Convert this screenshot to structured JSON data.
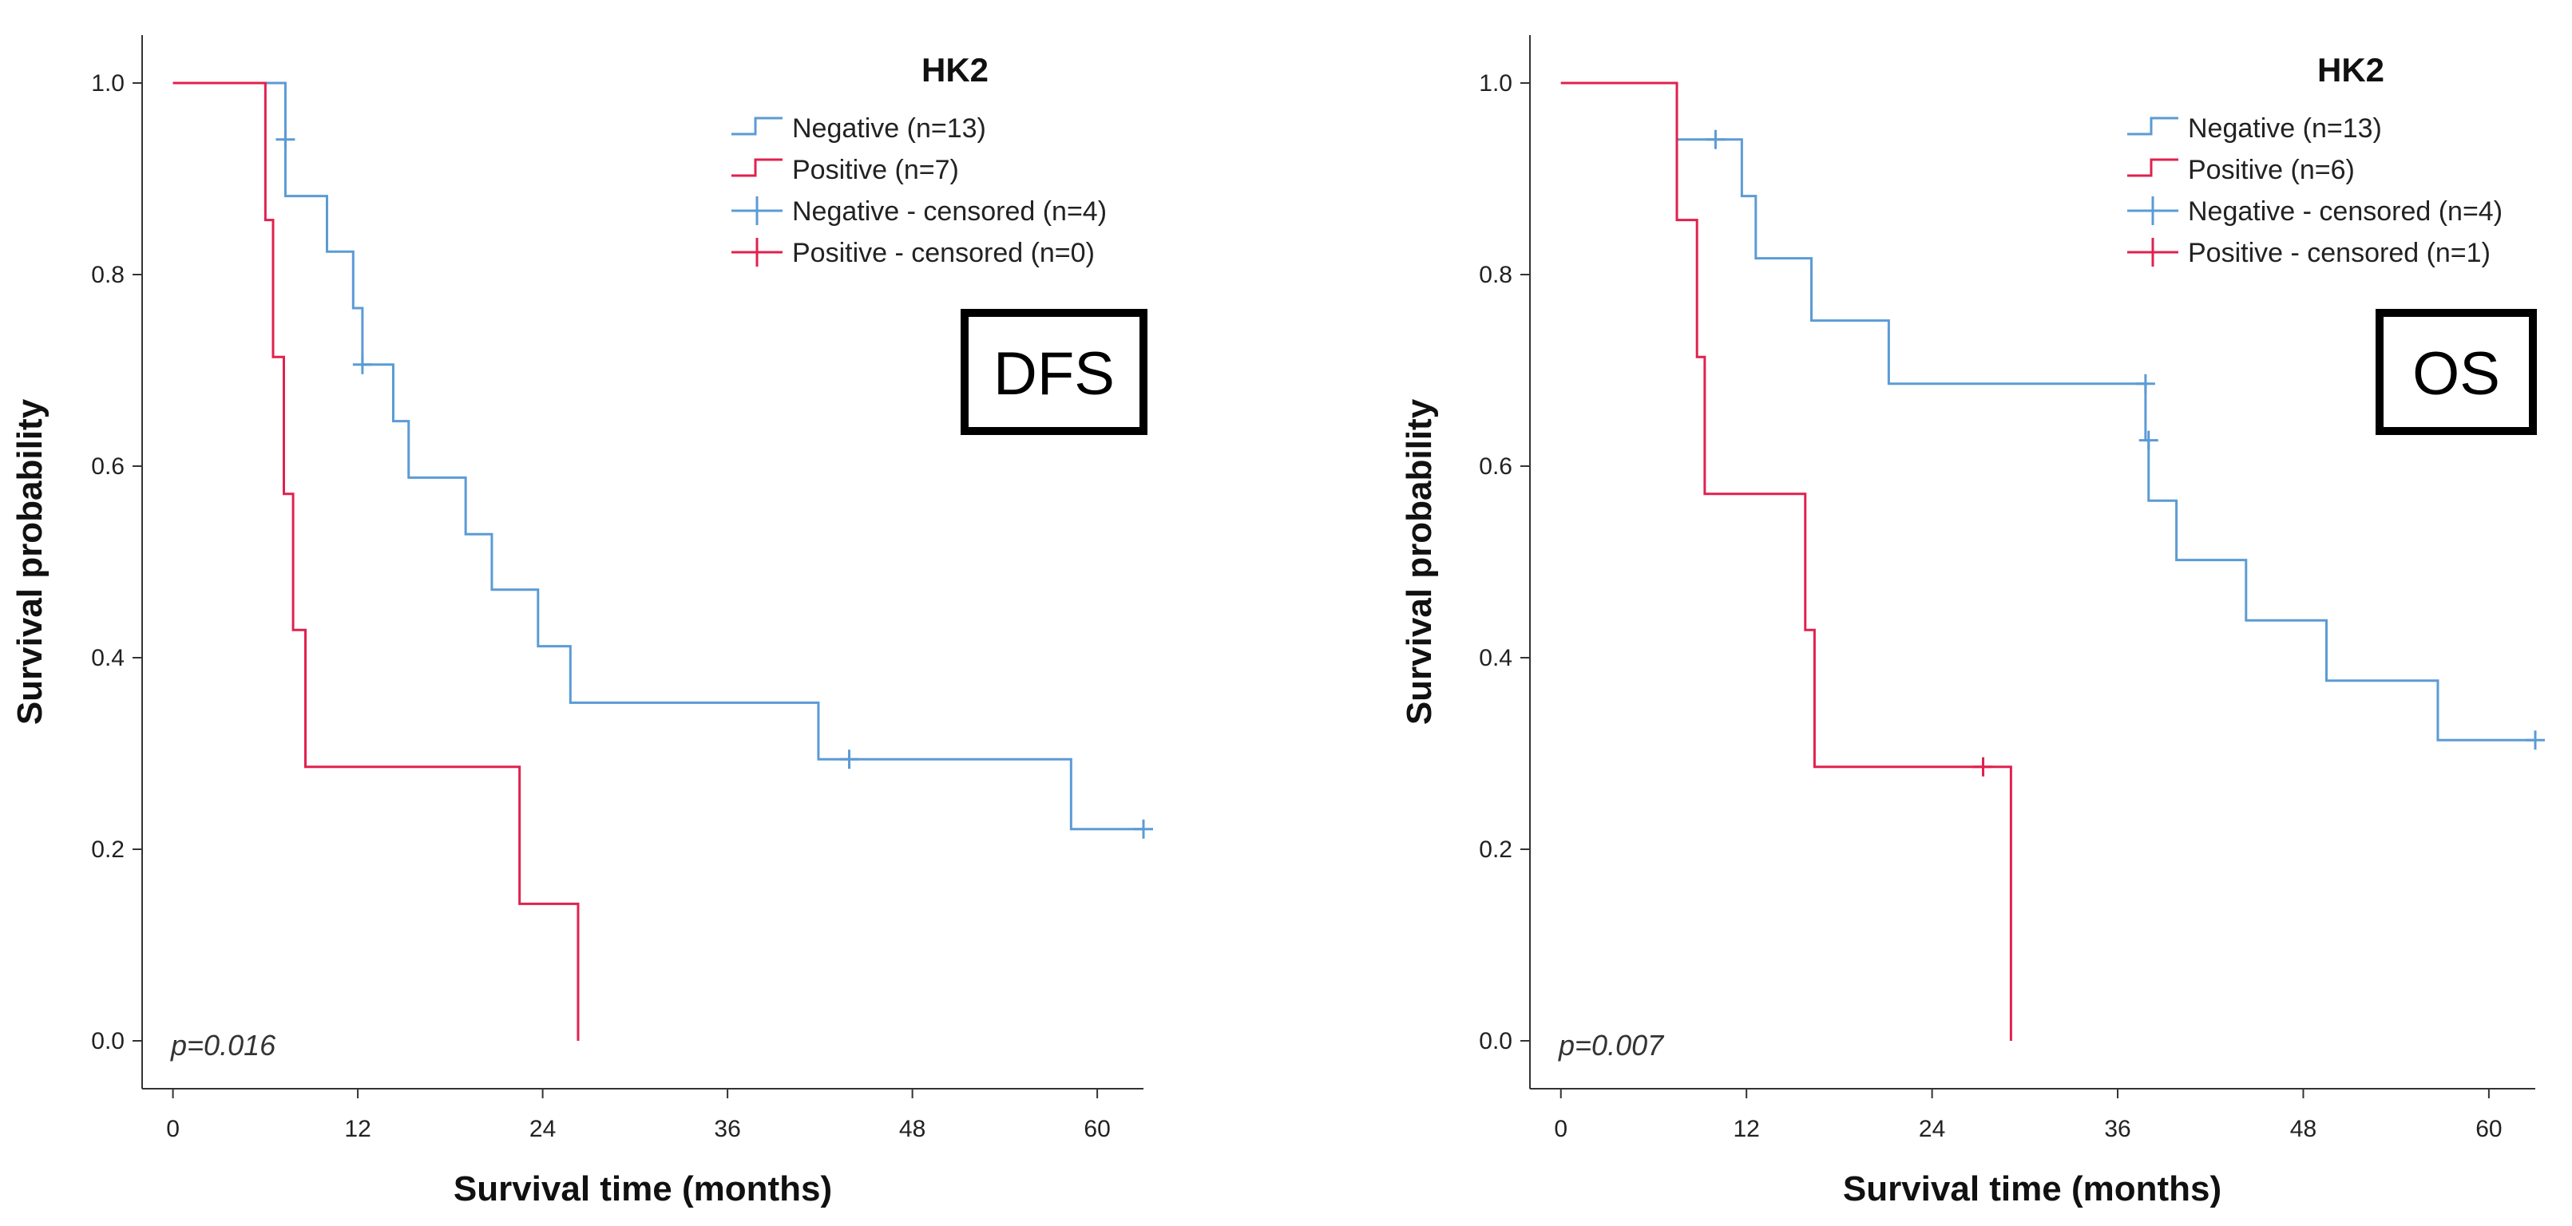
{
  "chart_data": [
    {
      "type": "line",
      "subtype": "kaplan-meier",
      "title": "",
      "xlabel": "Survival time (months)",
      "ylabel": "Survival probability",
      "xlim": [
        -2,
        63
      ],
      "ylim": [
        -0.05,
        1.05
      ],
      "xticks": [
        0,
        12,
        24,
        36,
        48,
        60
      ],
      "xtick_labels": [
        "0",
        "12",
        "24",
        "36",
        "48",
        "60"
      ],
      "yticks": [
        0.0,
        0.2,
        0.4,
        0.6,
        0.8,
        1.0
      ],
      "ytick_labels": [
        "0.0",
        "0.2",
        "0.4",
        "0.6",
        "0.8",
        "1.0"
      ],
      "grid": false,
      "legend_position": "top-right",
      "legend_title": "HK2",
      "legend": [
        "Negative (n=13)",
        "Positive (n=7)",
        "Negative - censored (n=4)",
        "Positive - censored (n=0)"
      ],
      "badge": "DFS",
      "pvalue_label": "p=0.016",
      "series": [
        {
          "name": "Negative (n=13)",
          "color": "#5b9bd5",
          "x": [
            0,
            7.3,
            10,
            11.7,
            12.3,
            14.3,
            15.3,
            19,
            20.7,
            23.7,
            25.8,
            41.9,
            58.3,
            63
          ],
          "y": [
            1.0,
            0.882,
            0.824,
            0.765,
            0.706,
            0.647,
            0.588,
            0.529,
            0.471,
            0.412,
            0.353,
            0.294,
            0.221,
            0.221
          ],
          "censored_x": [
            7.3,
            12.3,
            43.9,
            63
          ],
          "censored_y": [
            0.941,
            0.706,
            0.294,
            0.221
          ]
        },
        {
          "name": "Positive (n=7)",
          "color": "#e0214f",
          "x": [
            0,
            6,
            6.5,
            7.2,
            7.8,
            8.6,
            22.5,
            26.3
          ],
          "y": [
            1.0,
            0.857,
            0.714,
            0.571,
            0.429,
            0.286,
            0.143,
            0.0
          ],
          "censored_x": [],
          "censored_y": []
        }
      ]
    },
    {
      "type": "line",
      "subtype": "kaplan-meier",
      "title": "",
      "xlabel": "Survival time (months)",
      "ylabel": "Survival probability",
      "xlim": [
        -2,
        63
      ],
      "ylim": [
        -0.05,
        1.05
      ],
      "xticks": [
        0,
        12,
        24,
        36,
        48,
        60
      ],
      "xtick_labels": [
        "0",
        "12",
        "24",
        "36",
        "48",
        "60"
      ],
      "yticks": [
        0.0,
        0.2,
        0.4,
        0.6,
        0.8,
        1.0
      ],
      "ytick_labels": [
        "0.0",
        "0.2",
        "0.4",
        "0.6",
        "0.8",
        "1.0"
      ],
      "grid": false,
      "legend_position": "top-right",
      "legend_title": "HK2",
      "legend": [
        "Negative (n=13)",
        "Positive (n=6)",
        "Negative - censored (n=4)",
        "Positive - censored (n=1)"
      ],
      "badge": "OS",
      "pvalue_label": "p=0.007",
      "series": [
        {
          "name": "Negative (n=13)",
          "color": "#5b9bd5",
          "x": [
            0,
            7.5,
            11.7,
            12.6,
            16.2,
            21.2,
            37.8,
            38,
            39.8,
            44.3,
            49.5,
            56.7,
            63
          ],
          "y": [
            1.0,
            0.941,
            0.882,
            0.817,
            0.752,
            0.686,
            0.627,
            0.564,
            0.502,
            0.439,
            0.376,
            0.314,
            0.314
          ],
          "censored_x": [
            10,
            37.8,
            38,
            63
          ],
          "censored_y": [
            0.941,
            0.686,
            0.627,
            0.314
          ]
        },
        {
          "name": "Positive (n=6)",
          "color": "#e0214f",
          "x": [
            0,
            7.5,
            8.8,
            9.3,
            15.8,
            16.4,
            29.1
          ],
          "y": [
            1.0,
            0.857,
            0.714,
            0.571,
            0.429,
            0.286,
            0.0
          ],
          "censored_x": [
            27.3
          ],
          "censored_y": [
            0.286
          ]
        }
      ]
    }
  ]
}
